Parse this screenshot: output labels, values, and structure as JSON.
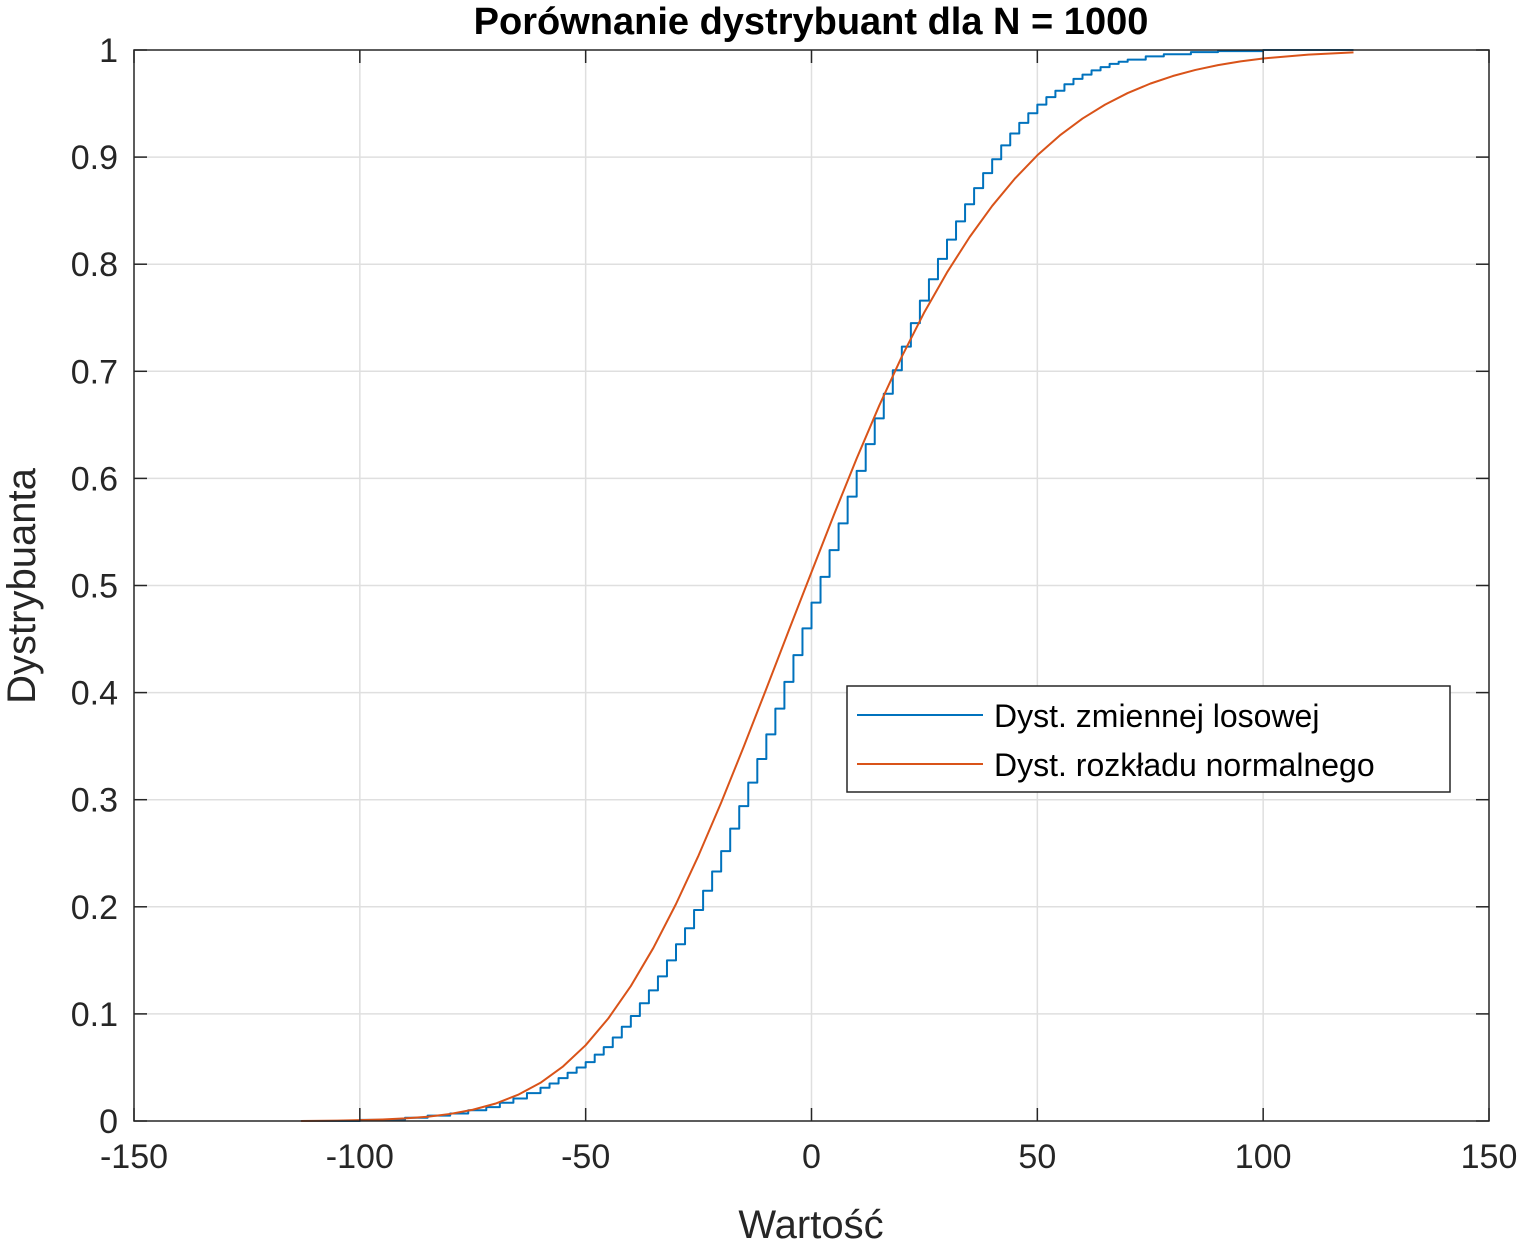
{
  "chart_data": {
    "type": "line",
    "title": "Porównanie dystrybuant dla N = 1000",
    "xlabel": "Wartość",
    "ylabel": "Dystrybuanta",
    "xlim": [
      -150,
      150
    ],
    "ylim": [
      0,
      1
    ],
    "xticks": [
      -150,
      -100,
      -50,
      0,
      50,
      100,
      150
    ],
    "yticks": [
      0,
      0.1,
      0.2,
      0.3,
      0.4,
      0.5,
      0.6,
      0.7,
      0.8,
      0.9,
      1
    ],
    "xtick_labels": [
      "-150",
      "-100",
      "-50",
      "0",
      "50",
      "100",
      "150"
    ],
    "ytick_labels": [
      "0",
      "0.1",
      "0.2",
      "0.3",
      "0.4",
      "0.5",
      "0.6",
      "0.7",
      "0.8",
      "0.9",
      "1"
    ],
    "grid": true,
    "legend_position": "right",
    "series": [
      {
        "name": "Dyst. zmiennej losowej",
        "color": "#0072BD",
        "style": "stairs",
        "x": [
          -113,
          -100,
          -90,
          -85,
          -80,
          -76,
          -72,
          -69,
          -66,
          -63,
          -60,
          -58,
          -56,
          -54,
          -52,
          -50,
          -48,
          -46,
          -44,
          -42,
          -40,
          -38,
          -36,
          -34,
          -32,
          -30,
          -28,
          -26,
          -24,
          -22,
          -20,
          -18,
          -16,
          -14,
          -12,
          -10,
          -8,
          -6,
          -4,
          -2,
          0,
          2,
          4,
          6,
          8,
          10,
          12,
          14,
          16,
          18,
          20,
          22,
          24,
          26,
          28,
          30,
          32,
          34,
          36,
          38,
          40,
          42,
          44,
          46,
          48,
          50,
          52,
          54,
          56,
          58,
          60,
          62,
          64,
          66,
          68,
          70,
          74,
          78,
          84,
          90,
          100,
          120
        ],
        "y": [
          0.0,
          0.001,
          0.003,
          0.005,
          0.007,
          0.01,
          0.013,
          0.017,
          0.021,
          0.026,
          0.031,
          0.035,
          0.04,
          0.045,
          0.05,
          0.055,
          0.062,
          0.069,
          0.078,
          0.088,
          0.098,
          0.11,
          0.122,
          0.135,
          0.15,
          0.165,
          0.18,
          0.197,
          0.215,
          0.233,
          0.252,
          0.273,
          0.294,
          0.316,
          0.338,
          0.361,
          0.385,
          0.41,
          0.435,
          0.46,
          0.484,
          0.508,
          0.533,
          0.558,
          0.583,
          0.607,
          0.632,
          0.656,
          0.679,
          0.701,
          0.723,
          0.745,
          0.766,
          0.786,
          0.805,
          0.823,
          0.84,
          0.856,
          0.871,
          0.885,
          0.898,
          0.911,
          0.922,
          0.932,
          0.941,
          0.949,
          0.956,
          0.962,
          0.968,
          0.973,
          0.977,
          0.981,
          0.984,
          0.987,
          0.989,
          0.991,
          0.994,
          0.996,
          0.998,
          0.999,
          1.0,
          1.0
        ]
      },
      {
        "name": "Dyst. rozkładu normalnego",
        "color": "#D95319",
        "style": "line",
        "x": [
          -113,
          -105,
          -100,
          -95,
          -90,
          -85,
          -80,
          -75,
          -70,
          -65,
          -60,
          -55,
          -50,
          -45,
          -40,
          -35,
          -30,
          -25,
          -20,
          -15,
          -10,
          -5,
          0,
          5,
          10,
          15,
          20,
          25,
          30,
          35,
          40,
          45,
          50,
          55,
          60,
          65,
          70,
          75,
          80,
          85,
          90,
          95,
          100,
          110,
          120
        ],
        "y": [
          0.0,
          0.0004,
          0.0008,
          0.0014,
          0.0024,
          0.004,
          0.0066,
          0.0105,
          0.0162,
          0.0244,
          0.0357,
          0.051,
          0.0708,
          0.0957,
          0.126,
          0.1617,
          0.2026,
          0.248,
          0.2973,
          0.3495,
          0.4036,
          0.4583,
          0.5125,
          0.5664,
          0.6186,
          0.668,
          0.7138,
          0.7553,
          0.7923,
          0.8253,
          0.8544,
          0.8798,
          0.9017,
          0.9203,
          0.936,
          0.949,
          0.9598,
          0.9686,
          0.9757,
          0.9814,
          0.9859,
          0.9894,
          0.9921,
          0.9957,
          0.9978
        ]
      }
    ]
  }
}
